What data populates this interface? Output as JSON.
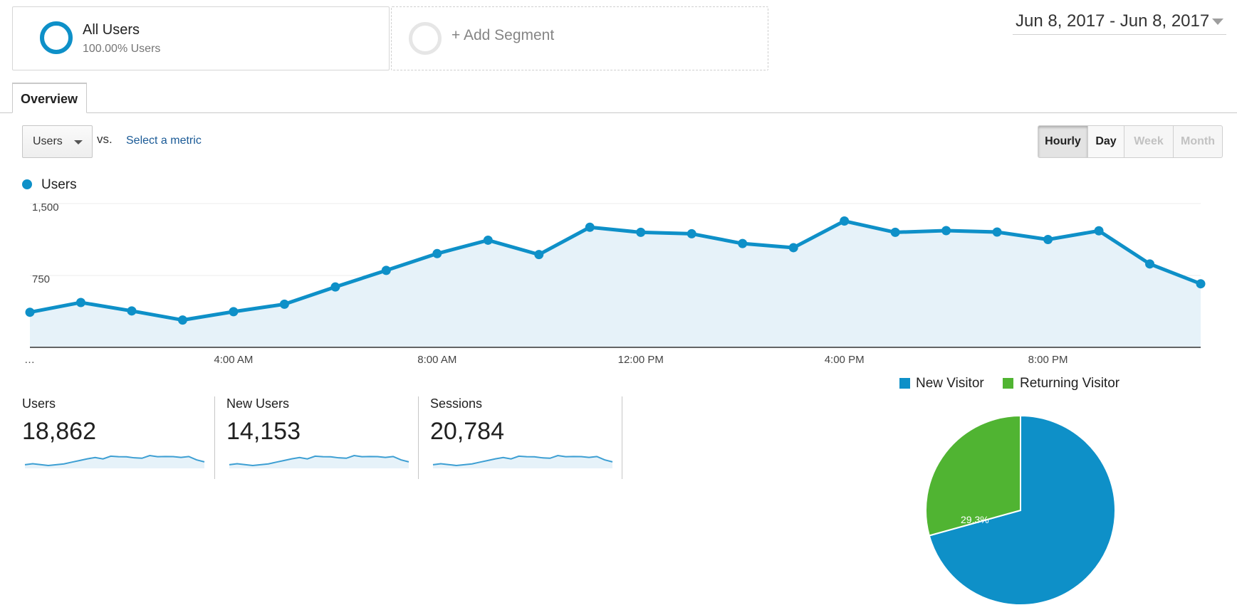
{
  "segments": {
    "active": {
      "title": "All Users",
      "subtitle": "100.00% Users",
      "color": "#0e90c8"
    },
    "add_label": "+ Add Segment"
  },
  "date_range": "Jun 8, 2017 - Jun 8, 2017",
  "tabs": [
    {
      "label": "Overview",
      "active": true
    }
  ],
  "metric": {
    "selected": "Users",
    "vs": "vs.",
    "select_metric": "Select a metric"
  },
  "granularity": {
    "hourly": "Hourly",
    "day": "Day",
    "week": "Week",
    "month": "Month",
    "selected": "Hourly",
    "disabled": [
      "Week",
      "Month"
    ]
  },
  "legend": {
    "label": "Users",
    "color": "#0e90c8"
  },
  "chart_data": {
    "type": "area",
    "series": [
      {
        "name": "Users",
        "color": "#0e90c8",
        "values": [
          366,
          468,
          380,
          285,
          372,
          450,
          630,
          803,
          978,
          1118,
          968,
          1253,
          1200,
          1185,
          1083,
          1040,
          1318,
          1200,
          1218,
          1203,
          1125,
          1216,
          870,
          663
        ]
      }
    ],
    "x": [
      0,
      1,
      2,
      3,
      4,
      5,
      6,
      7,
      8,
      9,
      10,
      11,
      12,
      13,
      14,
      15,
      16,
      17,
      18,
      19,
      20,
      21,
      22,
      23
    ],
    "x_tick_labels": [
      {
        "x": 0,
        "label": "…"
      },
      {
        "x": 4,
        "label": "4:00 AM"
      },
      {
        "x": 8,
        "label": "8:00 AM"
      },
      {
        "x": 12,
        "label": "12:00 PM"
      },
      {
        "x": 16,
        "label": "4:00 PM"
      },
      {
        "x": 20,
        "label": "8:00 PM"
      }
    ],
    "y_ticks": [
      {
        "value": 750,
        "label": "750"
      },
      {
        "value": 1500,
        "label": "1,500"
      }
    ],
    "ylim": [
      0,
      1500
    ],
    "grid": true
  },
  "scorecards": [
    {
      "label": "Users",
      "value": "18,862"
    },
    {
      "label": "New Users",
      "value": "14,153"
    },
    {
      "label": "Sessions",
      "value": "20,784"
    }
  ],
  "pie": {
    "legend": [
      {
        "label": "New Visitor",
        "color": "#0e90c8"
      },
      {
        "label": "Returning Visitor",
        "color": "#50b432"
      }
    ],
    "slices": [
      {
        "name": "New Visitor",
        "value": 70.7,
        "color": "#0e90c8"
      },
      {
        "name": "Returning Visitor",
        "value": 29.3,
        "color": "#50b432",
        "label": "29.3%"
      }
    ]
  }
}
